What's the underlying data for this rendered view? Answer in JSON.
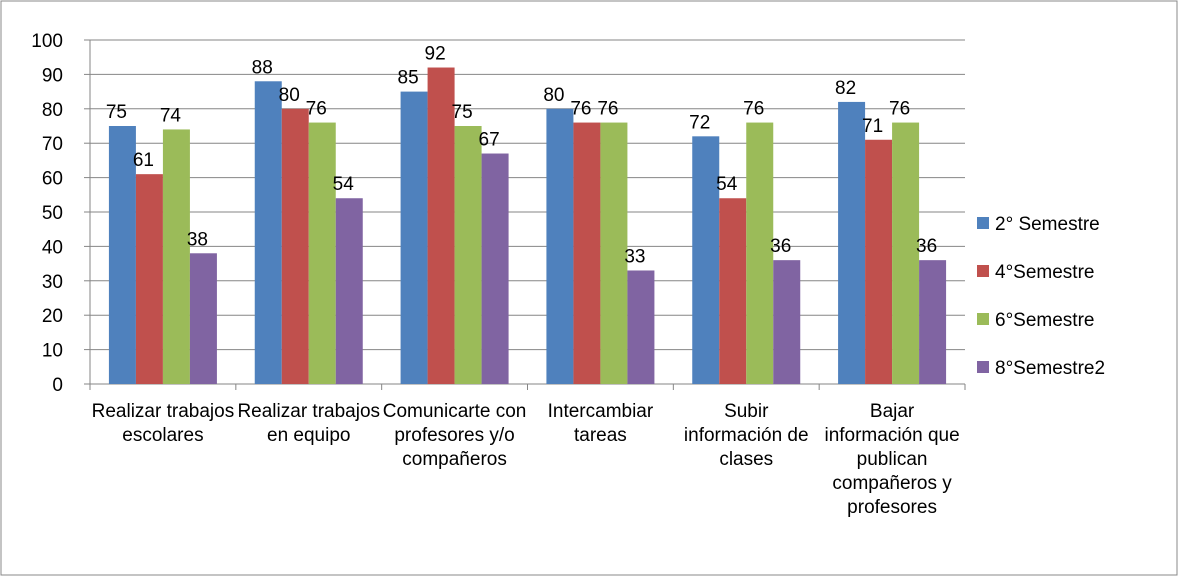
{
  "chart_data": {
    "type": "bar",
    "categories": [
      "Realizar trabajos escolares",
      "Realizar trabajos en equipo",
      "Comunicarte con profesores y/o compañeros",
      "Intercambiar tareas",
      "Subir información de clases",
      "Bajar información que publican compañeros y profesores"
    ],
    "series": [
      {
        "name": "2° Semestre",
        "color": "#4f81bd",
        "values": [
          75,
          88,
          85,
          80,
          72,
          82
        ]
      },
      {
        "name": "4°Semestre",
        "color": "#c0504d",
        "values": [
          61,
          80,
          92,
          76,
          54,
          71
        ]
      },
      {
        "name": "6°Semestre",
        "color": "#9bbb59",
        "values": [
          74,
          76,
          75,
          76,
          76,
          76
        ]
      },
      {
        "name": "8°Semestre2",
        "color": "#8064a2",
        "values": [
          38,
          54,
          67,
          33,
          36,
          36
        ]
      }
    ],
    "ylim": [
      0,
      100
    ],
    "yticks": [
      0,
      10,
      20,
      30,
      40,
      50,
      60,
      70,
      80,
      90,
      100
    ],
    "grid": true,
    "legend": "right"
  }
}
